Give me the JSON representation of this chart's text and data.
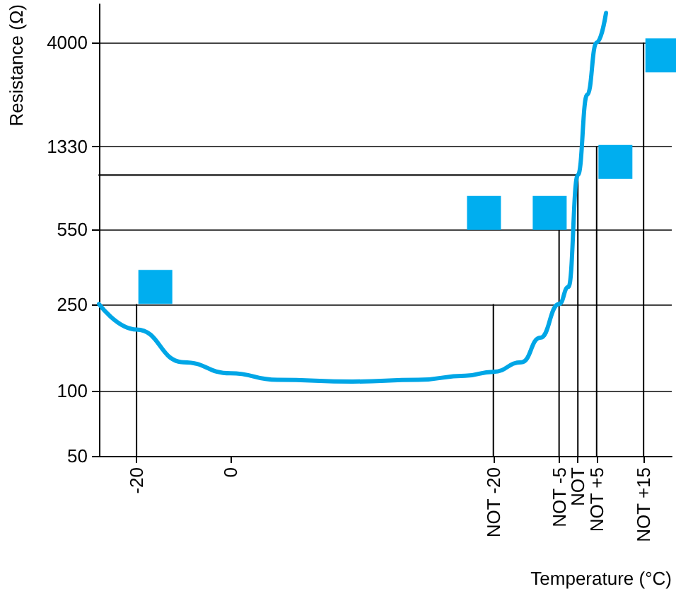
{
  "chart_data": {
    "type": "line",
    "xlabel": "Temperature (°C)",
    "ylabel": "Resistance (Ω)",
    "log": "y",
    "ylim": [
      50,
      6000
    ],
    "yticks": [
      50,
      100,
      250,
      550,
      1330,
      4000
    ],
    "grid": "y",
    "categories": [
      null,
      null,
      null,
      null,
      "-20",
      null,
      null,
      null,
      null,
      null,
      null,
      null,
      null,
      null,
      "0",
      null,
      null,
      null,
      null,
      null,
      null,
      null,
      null,
      null,
      null,
      null,
      null,
      null,
      null,
      null,
      null,
      null,
      null,
      null,
      null,
      null,
      null,
      null,
      null,
      null,
      null,
      null,
      "NOT -20",
      null,
      null,
      null,
      null,
      null,
      null,
      "NOT -5",
      null,
      "NOT",
      null,
      "NOT +5",
      null,
      null,
      null,
      null,
      "NOT +15",
      null,
      null,
      null
    ],
    "series": [
      {
        "color": "#00a6e6",
        "marker": "none",
        "values": [
          250,
          null,
          null,
          null,
          191,
          null,
          null,
          null,
          null,
          135,
          null,
          null,
          null,
          null,
          120,
          null,
          null,
          null,
          null,
          112,
          null,
          null,
          null,
          null,
          null,
          null,
          null,
          110,
          null,
          null,
          null,
          null,
          null,
          null,
          112,
          null,
          null,
          null,
          null,
          117,
          null,
          null,
          122,
          null,
          null,
          135,
          null,
          175,
          null,
          250,
          300,
          982,
          2300,
          4000,
          5470,
          null,
          null,
          null,
          null,
          null,
          null,
          null
        ]
      },
      {
        "type": "bar",
        "color": "#000000",
        "values": [
          null,
          null,
          null,
          null,
          250,
          null,
          null,
          null,
          null,
          null,
          null,
          null,
          null,
          null,
          null,
          null,
          null,
          null,
          null,
          null,
          null,
          null,
          null,
          null,
          null,
          null,
          null,
          null,
          null,
          null,
          null,
          null,
          null,
          null,
          null,
          null,
          null,
          null,
          null,
          null,
          null,
          null,
          250,
          null,
          null,
          null,
          null,
          null,
          null,
          550,
          null,
          982,
          null,
          1330,
          null,
          null,
          null,
          null,
          4000,
          null,
          null,
          null
        ]
      },
      {
        "color": "#000000",
        "marker": "none",
        "values": [
          982,
          null,
          null,
          null,
          null,
          null,
          null,
          null,
          null,
          null,
          null,
          null,
          null,
          null,
          null,
          null,
          null,
          null,
          null,
          null,
          null,
          null,
          null,
          null,
          null,
          null,
          null,
          null,
          null,
          null,
          null,
          null,
          null,
          null,
          null,
          null,
          null,
          null,
          null,
          null,
          null,
          null,
          null,
          null,
          null,
          null,
          null,
          null,
          null,
          null,
          null,
          982,
          null,
          null,
          null,
          null,
          null,
          null,
          null,
          null,
          null,
          null
        ]
      },
      {
        "type": "scatter",
        "color": "#00aeef",
        "marker": "square",
        "values": [
          null,
          null,
          null,
          null,
          null,
          null,
          300,
          null,
          null,
          null,
          null,
          null,
          null,
          null,
          null,
          null,
          null,
          null,
          null,
          null,
          null,
          null,
          null,
          null,
          null,
          null,
          null,
          null,
          null,
          null,
          null,
          null,
          null,
          null,
          null,
          null,
          null,
          null,
          null,
          null,
          null,
          657,
          null,
          null,
          null,
          null,
          null,
          null,
          657,
          null,
          null,
          null,
          null,
          null,
          null,
          1128,
          null,
          null,
          null,
          null,
          3490,
          null
        ]
      }
    ]
  }
}
